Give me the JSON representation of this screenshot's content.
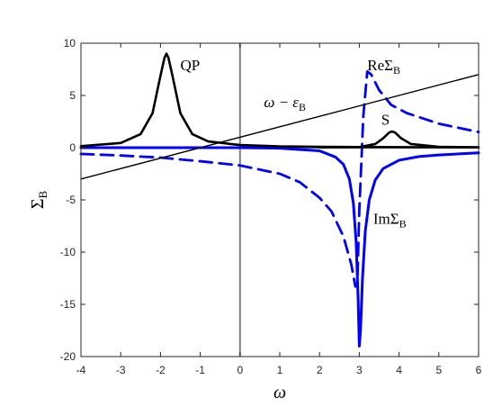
{
  "chart_data": {
    "type": "line",
    "xlabel": "ω",
    "ylabel": {
      "main": "Σ",
      "sub": "B"
    },
    "xlim": [
      -4,
      6
    ],
    "ylim": [
      -20,
      10
    ],
    "x_ticks": [
      -4,
      -3,
      -2,
      -1,
      0,
      1,
      2,
      3,
      4,
      5,
      6
    ],
    "y_ticks": [
      10,
      5,
      0,
      -5,
      -10,
      -15,
      -20
    ],
    "grid": false,
    "colors": {
      "black": "#000000",
      "blue": "#0000ff",
      "zero_lines": "#808080",
      "axes": "#262626"
    },
    "series": [
      {
        "name": "QP",
        "style": "solid-black",
        "x": [
          -4,
          -3,
          -2.5,
          -2.2,
          -2.0,
          -1.9,
          -1.85,
          -1.8,
          -1.7,
          -1.5,
          -1.2,
          -0.8,
          0,
          1,
          2,
          3,
          4,
          5,
          6
        ],
        "y": [
          0.15,
          0.45,
          1.3,
          3.3,
          6.9,
          8.6,
          9.0,
          8.6,
          6.9,
          3.3,
          1.3,
          0.6,
          0.25,
          0.12,
          0.08,
          0.06,
          0.05,
          0.04,
          0.04
        ]
      },
      {
        "name": "S",
        "style": "solid-black",
        "x": [
          2.0,
          3.0,
          3.4,
          3.6,
          3.75,
          3.82,
          3.9,
          4.05,
          4.3,
          5.0,
          6.0
        ],
        "y": [
          0.03,
          0.05,
          0.35,
          0.9,
          1.45,
          1.55,
          1.45,
          0.9,
          0.35,
          0.08,
          0.03
        ]
      },
      {
        "name": "ω − ε_B",
        "style": "thin-black",
        "x": [
          -4,
          6
        ],
        "y": [
          -3,
          7
        ]
      },
      {
        "name": "ReΣ_B",
        "style": "dashed-blue",
        "x": [
          -4,
          -3,
          -2,
          -1,
          0,
          1,
          1.5,
          2,
          2.3,
          2.6,
          2.8,
          2.9,
          2.95,
          3.0,
          3.1,
          3.2,
          3.3,
          3.5,
          3.8,
          4.2,
          5.0,
          6.0
        ],
        "y": [
          -0.6,
          -0.75,
          -0.95,
          -1.3,
          -1.7,
          -2.5,
          -3.3,
          -4.8,
          -6.1,
          -8.5,
          -11.2,
          -13.3,
          -13.0,
          -6.0,
          3.0,
          7.3,
          7.0,
          5.5,
          4.1,
          3.3,
          2.3,
          1.5
        ]
      },
      {
        "name": "ImΣ_B",
        "style": "solid-blue",
        "x": [
          -4,
          -2,
          0,
          1,
          2,
          2.4,
          2.6,
          2.75,
          2.85,
          2.92,
          2.97,
          3.0,
          3.03,
          3.08,
          3.15,
          3.25,
          3.4,
          3.6,
          4.0,
          4.5,
          5.0,
          6.0
        ],
        "y": [
          0.0,
          0.0,
          0.0,
          -0.05,
          -0.3,
          -0.9,
          -1.6,
          -3.0,
          -5.3,
          -9.0,
          -14.5,
          -19.0,
          -17.5,
          -12.5,
          -8.0,
          -5.0,
          -3.1,
          -2.0,
          -1.2,
          -0.85,
          -0.7,
          -0.5
        ]
      }
    ],
    "annotations": [
      {
        "name": "QP",
        "text": "QP",
        "x": -1.5,
        "y": 7.4
      },
      {
        "name": "S",
        "text": "S",
        "x": 3.55,
        "y": 2.2
      },
      {
        "name": "omega-minus-eps",
        "text": "ω − ε",
        "sub": "B",
        "x": 0.6,
        "y": 3.9
      },
      {
        "name": "re-sigma",
        "text": "ReΣ",
        "sub": "B",
        "x": 3.2,
        "y": 7.4
      },
      {
        "name": "im-sigma",
        "text": "ImΣ",
        "sub": "B",
        "x": 3.35,
        "y": -7.3
      }
    ]
  }
}
